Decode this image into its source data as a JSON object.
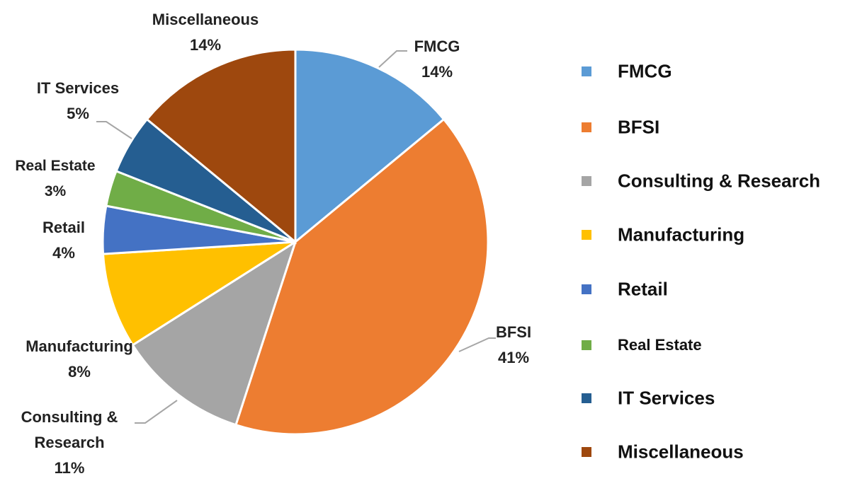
{
  "chart_data": {
    "type": "pie",
    "categories": [
      "FMCG",
      "BFSI",
      "Consulting & Research",
      "Manufacturing",
      "Retail",
      "Real Estate",
      "IT Services",
      "Miscellaneous"
    ],
    "values": [
      14,
      41,
      11,
      8,
      4,
      3,
      5,
      14
    ],
    "value_labels": [
      "14%",
      "41%",
      "11%",
      "8%",
      "4%",
      "3%",
      "5%",
      "14%"
    ],
    "colors": [
      "#5b9bd5",
      "#ed7d31",
      "#a5a5a5",
      "#ffc000",
      "#4472c4",
      "#70ad47",
      "#255e91",
      "#9e480e"
    ],
    "legend": "right"
  }
}
